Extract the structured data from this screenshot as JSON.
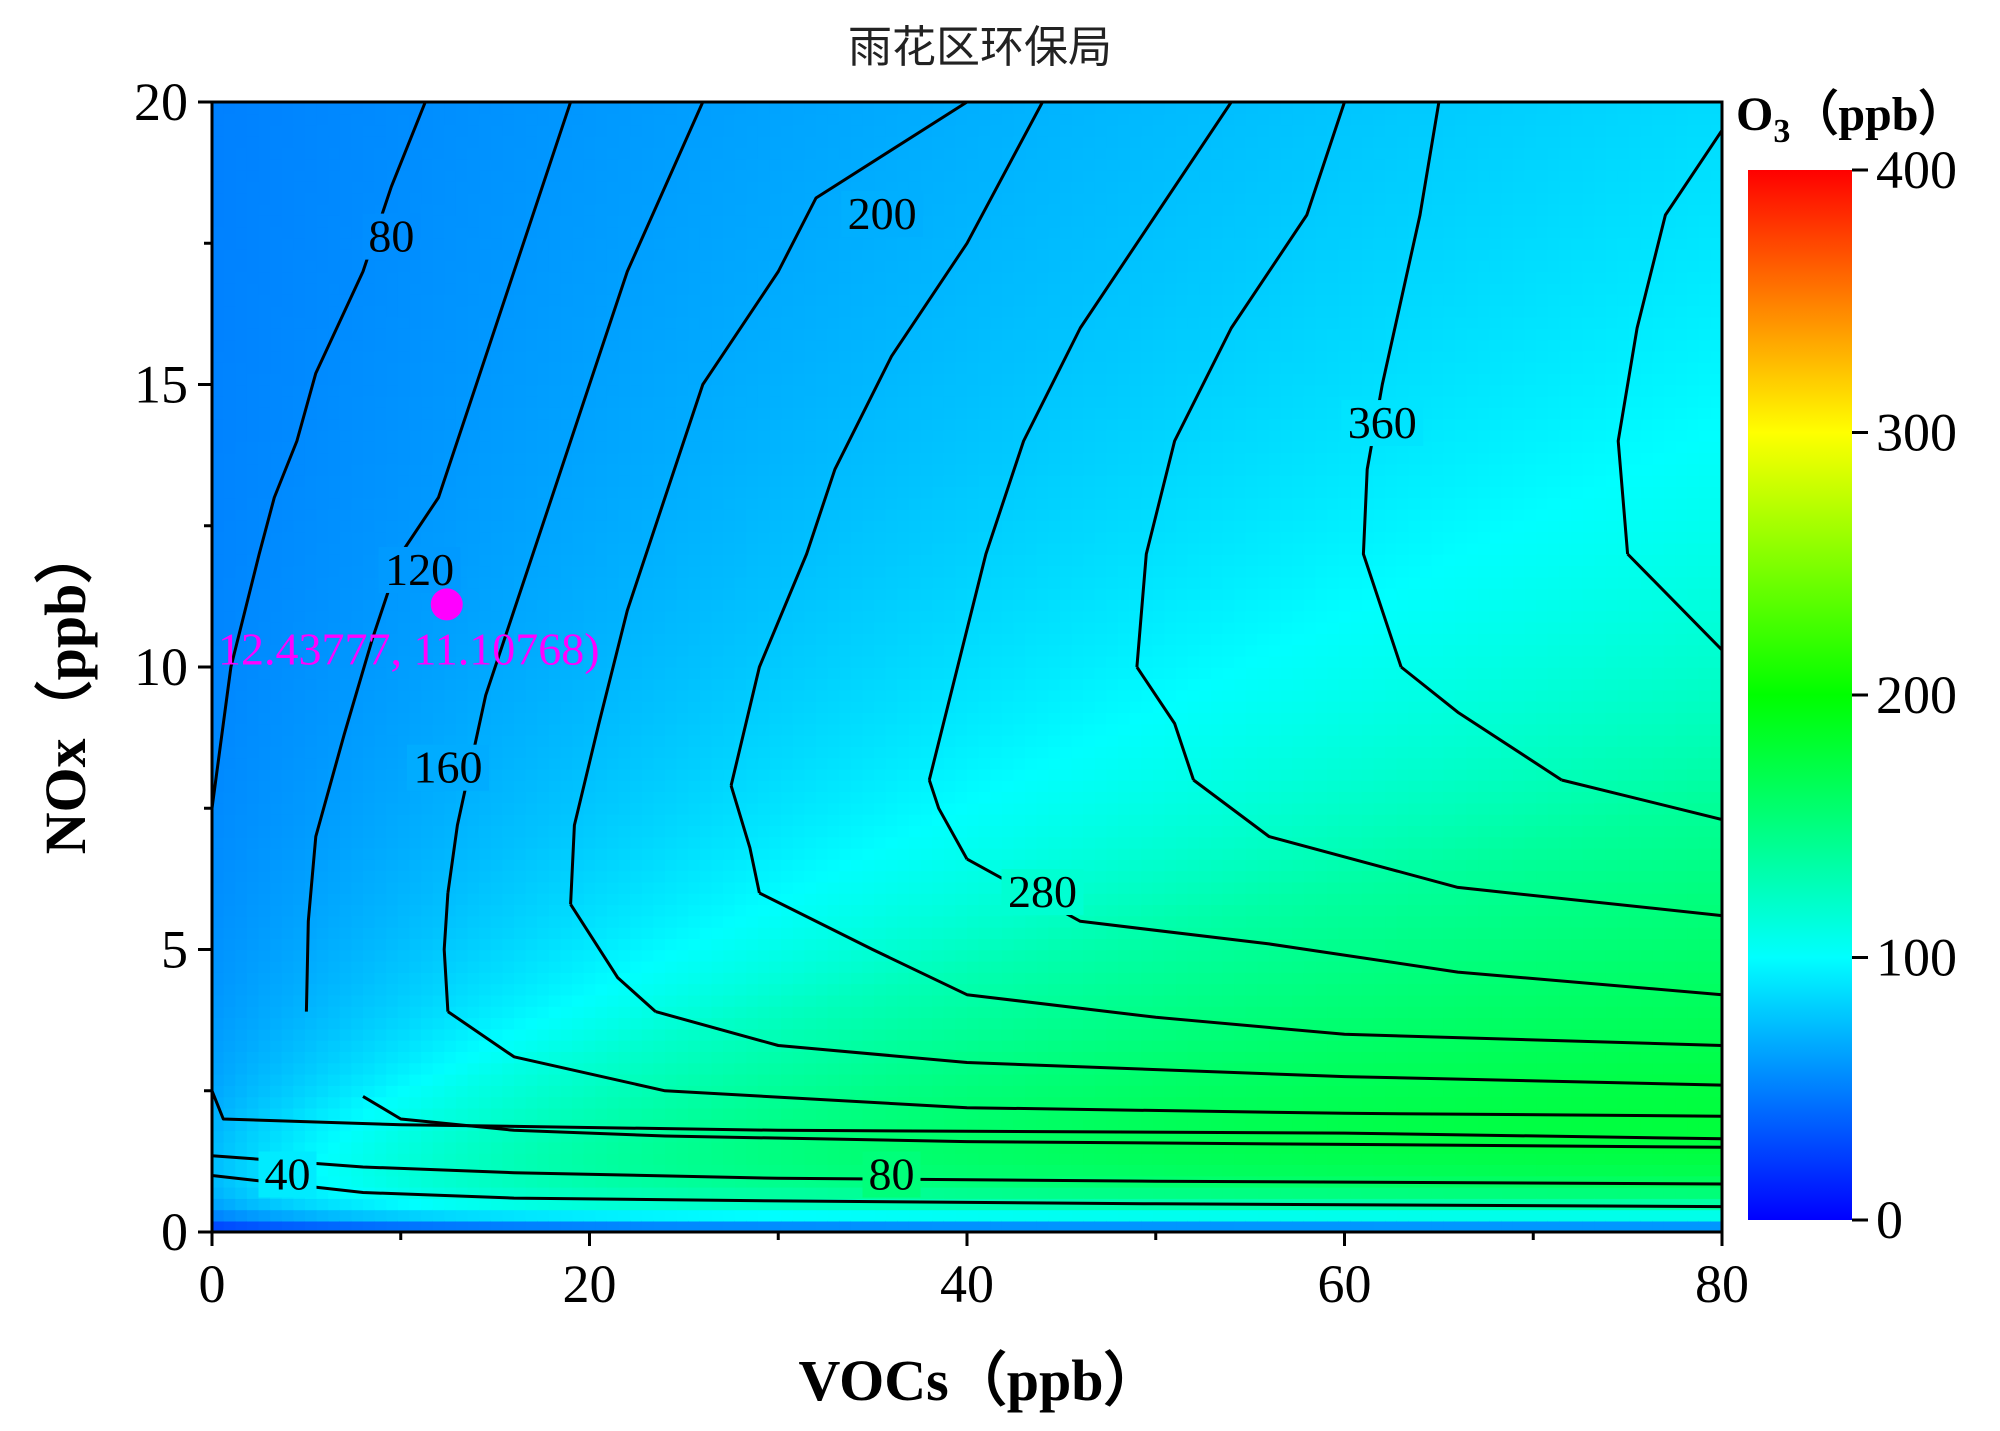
{
  "chart_data": {
    "type": "heatmap",
    "subtype": "filled-contour (EKMA isopleth)",
    "title": "雨花区环保局",
    "xlabel": "VOCs（ppb）",
    "ylabel": "NOx（ppb）",
    "xlim": [
      0,
      80
    ],
    "ylim": [
      0,
      20
    ],
    "x_ticks": [
      0,
      20,
      40,
      60,
      80
    ],
    "y_ticks": [
      0,
      5,
      10,
      15,
      20
    ],
    "x_minor_step": 10,
    "y_minor_step": 2.5,
    "grid": false,
    "colorbar": {
      "label_main": "O",
      "label_sub": "3",
      "label_unit": "（ppb）",
      "range": [
        0,
        400
      ],
      "ticks": [
        0,
        100,
        200,
        300,
        400
      ],
      "colormap": [
        "#0000ff",
        "#00ffff",
        "#00ff00",
        "#ffff00",
        "#ff0000"
      ],
      "placement": "right"
    },
    "contour_labels": [
      {
        "text": "40",
        "x": 4.0,
        "y": 1.0
      },
      {
        "text": "80",
        "x": 36.0,
        "y": 1.0
      },
      {
        "text": "80",
        "x": 9.5,
        "y": 17.6
      },
      {
        "text": "120",
        "x": 11.0,
        "y": 11.7
      },
      {
        "text": "160",
        "x": 12.5,
        "y": 8.2
      },
      {
        "text": "200",
        "x": 35.5,
        "y": 18.0
      },
      {
        "text": "280",
        "x": 44.0,
        "y": 6.0
      },
      {
        "text": "360",
        "x": 62.0,
        "y": 14.3
      }
    ],
    "marker": {
      "x": 12.43777,
      "y": 11.10768,
      "label": "12.43777, 11.10768)",
      "color": "#ff00ff"
    },
    "contour_lines": [
      {
        "level": 40,
        "points": [
          [
            0,
            1.0
          ],
          [
            8,
            0.7
          ],
          [
            16,
            0.6
          ],
          [
            30,
            0.55
          ],
          [
            50,
            0.5
          ],
          [
            80,
            0.45
          ]
        ]
      },
      {
        "level": 80,
        "points": [
          [
            0,
            1.35
          ],
          [
            8,
            1.15
          ],
          [
            16,
            1.05
          ],
          [
            30,
            0.95
          ],
          [
            50,
            0.9
          ],
          [
            80,
            0.85
          ]
        ]
      },
      {
        "level": 80,
        "points": [
          [
            0,
            7.5
          ],
          [
            1,
            10
          ],
          [
            2.5,
            12
          ],
          [
            3.3,
            13
          ],
          [
            4.5,
            14
          ],
          [
            5.5,
            15.2
          ],
          [
            8,
            17
          ],
          [
            9.5,
            18.5
          ],
          [
            11.3,
            20
          ]
        ]
      },
      {
        "level": 120,
        "points": [
          [
            0,
            2.5
          ],
          [
            0.6,
            2.0
          ],
          [
            10,
            1.9
          ],
          [
            30,
            1.8
          ],
          [
            60,
            1.75
          ],
          [
            80,
            1.65
          ]
        ]
      },
      {
        "level": 120,
        "points": [
          [
            5,
            3.9
          ],
          [
            5.1,
            5.5
          ],
          [
            5.5,
            7
          ],
          [
            7,
            8.8
          ],
          [
            8.5,
            10.5
          ],
          [
            10,
            12
          ],
          [
            12,
            13
          ],
          [
            14,
            15
          ],
          [
            16,
            17
          ],
          [
            19,
            20
          ]
        ]
      },
      {
        "level": 160,
        "points": [
          [
            8,
            2.4
          ],
          [
            10,
            2.0
          ],
          [
            16,
            1.8
          ],
          [
            24,
            1.7
          ],
          [
            40,
            1.6
          ],
          [
            60,
            1.55
          ],
          [
            80,
            1.5
          ]
        ]
      },
      {
        "level": 160,
        "points": [
          [
            12.5,
            6.0
          ],
          [
            13,
            7.2
          ],
          [
            14.5,
            9.5
          ],
          [
            16,
            11
          ],
          [
            18,
            13
          ],
          [
            20,
            15
          ],
          [
            22,
            17
          ],
          [
            26,
            20
          ]
        ]
      },
      {
        "level": 200,
        "points": [
          [
            12.5,
            3.9
          ],
          [
            16,
            3.1
          ],
          [
            24,
            2.5
          ],
          [
            40,
            2.2
          ],
          [
            60,
            2.1
          ],
          [
            80,
            2.05
          ]
        ]
      },
      {
        "level": 200,
        "points": [
          [
            12.5,
            3.9
          ],
          [
            12.3,
            5.0
          ],
          [
            12.5,
            6.0
          ]
        ]
      },
      {
        "level": 200,
        "points": [
          [
            19,
            5.8
          ],
          [
            19.2,
            7.2
          ],
          [
            20.5,
            9
          ],
          [
            22,
            11
          ],
          [
            24,
            13
          ],
          [
            26,
            15
          ],
          [
            30,
            17
          ],
          [
            32,
            18.3
          ],
          [
            40,
            20
          ]
        ]
      },
      {
        "level": 240,
        "points": [
          [
            23.5,
            3.9
          ],
          [
            30,
            3.3
          ],
          [
            40,
            3.0
          ],
          [
            60,
            2.75
          ],
          [
            80,
            2.6
          ]
        ]
      },
      {
        "level": 240,
        "points": [
          [
            23.5,
            3.9
          ],
          [
            21.5,
            4.5
          ],
          [
            19,
            5.8
          ]
        ]
      },
      {
        "level": 240,
        "points": [
          [
            27.5,
            7.9
          ],
          [
            29,
            10
          ],
          [
            31.5,
            12
          ],
          [
            33,
            13.5
          ],
          [
            36,
            15.5
          ],
          [
            40,
            17.5
          ],
          [
            44,
            20
          ]
        ]
      },
      {
        "level": 280,
        "points": [
          [
            29,
            6.0
          ],
          [
            35,
            5.0
          ],
          [
            40,
            4.2
          ],
          [
            50,
            3.8
          ],
          [
            60,
            3.5
          ],
          [
            80,
            3.3
          ]
        ]
      },
      {
        "level": 280,
        "points": [
          [
            29,
            6.0
          ],
          [
            28.5,
            6.8
          ],
          [
            27.5,
            7.9
          ]
        ]
      },
      {
        "level": 280,
        "points": [
          [
            38,
            8.0
          ],
          [
            39.5,
            10
          ],
          [
            41,
            12
          ],
          [
            43,
            14
          ],
          [
            46,
            16
          ],
          [
            50,
            18
          ],
          [
            54,
            20
          ]
        ]
      },
      {
        "level": 320,
        "points": [
          [
            40,
            6.6
          ],
          [
            46,
            5.5
          ],
          [
            56,
            5.1
          ],
          [
            66,
            4.6
          ],
          [
            80,
            4.2
          ]
        ]
      },
      {
        "level": 320,
        "points": [
          [
            40,
            6.6
          ],
          [
            38.5,
            7.5
          ],
          [
            38,
            8.0
          ]
        ]
      },
      {
        "level": 320,
        "points": [
          [
            49,
            10
          ],
          [
            49.5,
            12
          ],
          [
            51,
            14
          ],
          [
            54,
            16
          ],
          [
            58,
            18
          ],
          [
            60,
            20
          ]
        ]
      },
      {
        "level": 360,
        "points": [
          [
            52,
            8.0
          ],
          [
            56,
            7.0
          ],
          [
            66,
            6.1
          ],
          [
            80,
            5.6
          ]
        ]
      },
      {
        "level": 360,
        "points": [
          [
            52,
            8.0
          ],
          [
            51,
            9.0
          ],
          [
            49,
            10
          ]
        ]
      },
      {
        "level": 360,
        "points": [
          [
            63,
            10
          ],
          [
            61,
            12
          ],
          [
            61.2,
            13.5
          ],
          [
            62,
            15
          ],
          [
            64,
            18
          ],
          [
            65,
            20
          ]
        ]
      },
      {
        "level": 380,
        "points": [
          [
            71.5,
            8.0
          ],
          [
            80,
            7.3
          ]
        ]
      },
      {
        "level": 380,
        "points": [
          [
            71.5,
            8.0
          ],
          [
            66,
            9.2
          ],
          [
            63,
            10
          ]
        ]
      },
      {
        "level": 400,
        "points": [
          [
            75,
            12
          ],
          [
            80,
            10.3
          ]
        ]
      },
      {
        "level": 400,
        "points": [
          [
            75,
            12
          ],
          [
            74.5,
            14
          ],
          [
            75.5,
            16
          ],
          [
            77,
            18
          ],
          [
            80,
            19.5
          ]
        ]
      }
    ]
  }
}
